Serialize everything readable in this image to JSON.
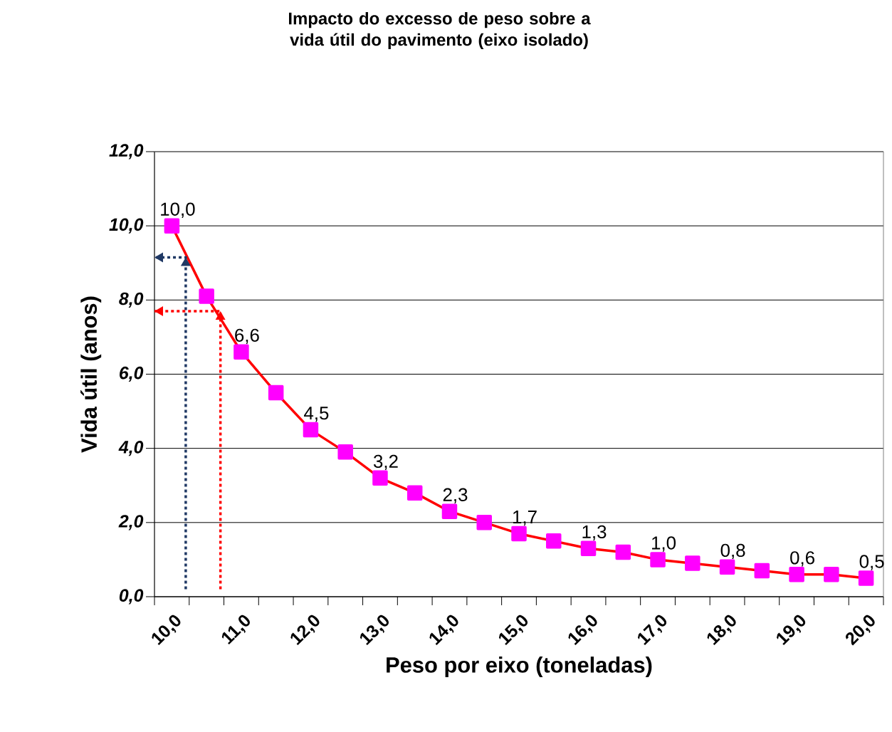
{
  "chart_data": {
    "type": "line",
    "title": "Impacto do excesso de peso sobre a vida útil do pavimento (eixo isolado)",
    "xlabel": "Peso por eixo (toneladas)",
    "ylabel": "Vida útil (anos)",
    "categories": [
      "10,0",
      null,
      "11,0",
      null,
      "12,0",
      null,
      "13,0",
      null,
      "14,0",
      null,
      "15,0",
      null,
      "16,0",
      null,
      "17,0",
      null,
      "18,0",
      null,
      "19,0",
      null,
      "20,0"
    ],
    "ylim": [
      0,
      12
    ],
    "yticks": [
      {
        "value": 0,
        "label": "0,0"
      },
      {
        "value": 2,
        "label": "2,0"
      },
      {
        "value": 4,
        "label": "4,0"
      },
      {
        "value": 6,
        "label": "6,0"
      },
      {
        "value": 8,
        "label": "8,0"
      },
      {
        "value": 10,
        "label": "10,0"
      },
      {
        "value": 12,
        "label": "12,0"
      }
    ],
    "grid": "y",
    "series": [
      {
        "color": "#ff0000",
        "marker": "square",
        "line_style": "solid",
        "values": [
          10.0,
          8.1,
          6.6,
          5.5,
          4.5,
          3.9,
          3.2,
          2.8,
          2.3,
          2.0,
          1.7,
          1.5,
          1.3,
          1.2,
          1.0,
          0.9,
          0.8,
          0.7,
          0.6,
          0.6,
          0.5
        ],
        "colors": [
          "#ff00ff",
          "#ff00ff",
          "#ff00ff",
          "#ff00ff",
          "#ff00ff",
          "#ff00ff",
          "#ff00ff",
          "#ff00ff",
          "#ff00ff",
          "#ff00ff",
          "#ff00ff",
          "#ff00ff",
          "#ff00ff",
          "#ff00ff",
          "#ff00ff",
          "#ff00ff",
          "#ff00ff",
          "#ff00ff",
          "#ff00ff",
          "#ff00ff",
          "#ff00ff"
        ],
        "value_labels": [
          "10,0",
          null,
          "6,6",
          null,
          "4,5",
          null,
          "3,2",
          null,
          "2,3",
          null,
          "1,7",
          null,
          "1,3",
          null,
          "1,0",
          null,
          "0,8",
          null,
          "0,6",
          null,
          "0,5"
        ]
      }
    ]
  }
}
